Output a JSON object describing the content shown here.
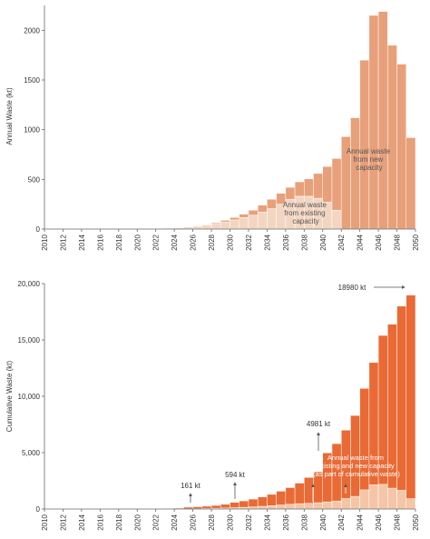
{
  "chart_data": [
    {
      "type": "bar",
      "stacked": true,
      "ylabel": "Annual Waste (kt)",
      "ylim": [
        0,
        2250
      ],
      "yticks": [
        0,
        500,
        1000,
        1500,
        2000
      ],
      "x_range": [
        2010,
        2050
      ],
      "xticks": [
        "2010",
        "2012",
        "2014",
        "2016",
        "2018",
        "2020",
        "2022",
        "2024",
        "2026",
        "2028",
        "2030",
        "2032",
        "2034",
        "2036",
        "2038",
        "2040",
        "2042",
        "2044",
        "2046",
        "2048",
        "2050"
      ],
      "grid": false,
      "colors": {
        "existing": "#f3d6c2",
        "new": "#e8a07a"
      },
      "categories": [
        2010,
        2011,
        2012,
        2013,
        2014,
        2015,
        2016,
        2017,
        2018,
        2019,
        2020,
        2021,
        2022,
        2023,
        2024,
        2025,
        2026,
        2027,
        2028,
        2029,
        2030,
        2031,
        2032,
        2033,
        2034,
        2035,
        2036,
        2037,
        2038,
        2039,
        2040,
        2041,
        2042,
        2043,
        2044,
        2045,
        2046,
        2047,
        2048,
        2049
      ],
      "series": [
        {
          "key": "existing",
          "values": [
            0,
            0,
            0,
            0,
            0,
            0,
            0,
            0,
            0,
            1,
            2,
            4,
            6,
            9,
            13,
            20,
            28,
            40,
            55,
            72,
            92,
            115,
            140,
            170,
            205,
            250,
            300,
            330,
            330,
            310,
            270,
            190,
            0,
            0,
            0,
            0,
            0,
            0,
            0,
            0
          ]
        },
        {
          "key": "new",
          "values": [
            0,
            0,
            0,
            0,
            0,
            0,
            0,
            0,
            0,
            0,
            0,
            0,
            0,
            0,
            0,
            0,
            2,
            5,
            10,
            16,
            25,
            35,
            50,
            70,
            95,
            110,
            120,
            145,
            175,
            250,
            360,
            520,
            930,
            1120,
            1700,
            2150,
            2190,
            1850,
            1660,
            920
          ]
        }
      ],
      "annotations": [
        {
          "key": "existing",
          "lines": [
            "Annual waste",
            "from existing",
            "capacity"
          ]
        },
        {
          "key": "new",
          "lines": [
            "Annual waste",
            "from new",
            "capacity"
          ]
        }
      ]
    },
    {
      "type": "bar",
      "stacked": true,
      "ylabel": "Cumulative Waste (kt)",
      "ylim": [
        0,
        20000
      ],
      "yticks": [
        0,
        5000,
        10000,
        15000,
        20000
      ],
      "ytick_labels": [
        "0",
        "5,000",
        "10,000",
        "15,000",
        "20,000"
      ],
      "x_range": [
        2010,
        2050
      ],
      "xticks": [
        "2010",
        "2012",
        "2014",
        "2016",
        "2018",
        "2020",
        "2022",
        "2024",
        "2026",
        "2028",
        "2030",
        "2032",
        "2034",
        "2036",
        "2038",
        "2040",
        "2042",
        "2044",
        "2046",
        "2048",
        "2050"
      ],
      "grid": false,
      "colors": {
        "annual": "#f4c6a7",
        "cumulative": "#e96a35"
      },
      "categories": [
        2010,
        2011,
        2012,
        2013,
        2014,
        2015,
        2016,
        2017,
        2018,
        2019,
        2020,
        2021,
        2022,
        2023,
        2024,
        2025,
        2026,
        2027,
        2028,
        2029,
        2030,
        2031,
        2032,
        2033,
        2034,
        2035,
        2036,
        2037,
        2038,
        2039,
        2040,
        2041,
        2042,
        2043,
        2044,
        2045,
        2046,
        2047,
        2048,
        2049
      ],
      "cumulative": [
        0,
        0,
        0,
        0,
        0,
        0,
        1,
        3,
        6,
        10,
        16,
        25,
        37,
        53,
        80,
        161,
        200,
        250,
        320,
        420,
        594,
        720,
        880,
        1070,
        1300,
        1580,
        1900,
        2300,
        2800,
        3300,
        4981,
        5800,
        7000,
        8300,
        10700,
        13000,
        15400,
        16400,
        18000,
        18980
      ],
      "annual_values": [
        0,
        0,
        0,
        0,
        0,
        0,
        0,
        0,
        0,
        1,
        2,
        4,
        6,
        9,
        13,
        20,
        30,
        45,
        65,
        88,
        117,
        150,
        190,
        240,
        300,
        360,
        420,
        475,
        505,
        560,
        630,
        710,
        930,
        1120,
        1700,
        2150,
        2190,
        1850,
        1660,
        920
      ],
      "annotations": [
        {
          "key": "161",
          "text": "161 kt",
          "year": 2025
        },
        {
          "key": "594",
          "text": "594 kt",
          "year": 2030
        },
        {
          "key": "4981",
          "text": "4981 kt",
          "year": 2040
        },
        {
          "key": "18980",
          "text": "18980 kt",
          "year": 2049
        },
        {
          "key": "annual",
          "lines": [
            "Annual waste from",
            "existing and new capacity",
            "(as part of cumulative waste)"
          ]
        }
      ]
    }
  ]
}
